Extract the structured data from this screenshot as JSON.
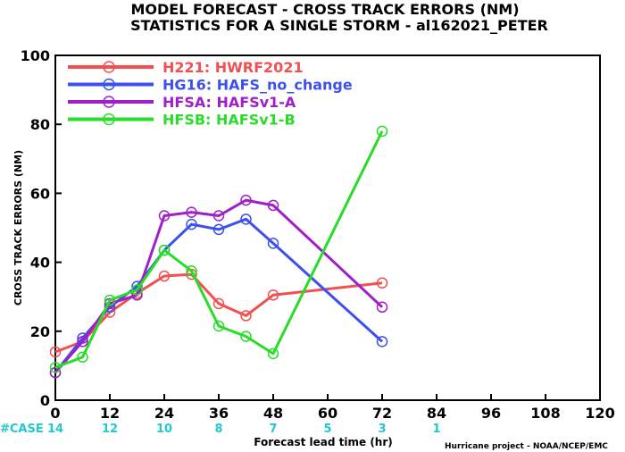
{
  "chart_data": {
    "type": "line",
    "title": "MODEL FORECAST - CROSS TRACK ERRORS (NM)",
    "subtitle": "STATISTICS FOR A SINGLE STORM - al162021_PETER",
    "xlabel": "Forecast lead time (hr)",
    "ylabel": "CROSS TRACK ERRORS (NM)",
    "xlim": [
      0,
      120
    ],
    "ylim": [
      0,
      100
    ],
    "x_ticks": [
      "0",
      "12",
      "24",
      "36",
      "48",
      "60",
      "72",
      "84",
      "96",
      "108",
      "120"
    ],
    "y_ticks": [
      "0",
      "20",
      "40",
      "60",
      "80",
      "100"
    ],
    "grid": false,
    "legend_position": "top-left",
    "case_label": "#CASE",
    "case_counts": [
      {
        "x": 0,
        "label": "14"
      },
      {
        "x": 12,
        "label": "12"
      },
      {
        "x": 24,
        "label": "10"
      },
      {
        "x": 36,
        "label": "8"
      },
      {
        "x": 48,
        "label": "7"
      },
      {
        "x": 60,
        "label": "5"
      },
      {
        "x": 72,
        "label": "3"
      },
      {
        "x": 84,
        "label": "1"
      }
    ],
    "credit": "Hurricane project - NOAA/NCEP/EMC",
    "series": [
      {
        "name": "H221: HWRF2021",
        "color": "#f25050",
        "x": [
          0,
          6,
          12,
          18,
          24,
          30,
          36,
          42,
          48,
          72
        ],
        "y": [
          14,
          17,
          25.5,
          31,
          36,
          36.5,
          28,
          24.5,
          30.5,
          34
        ]
      },
      {
        "name": "HG16: HAFS_no_change",
        "color": "#3c50f0",
        "x": [
          0,
          6,
          12,
          18,
          24,
          30,
          36,
          42,
          48,
          72
        ],
        "y": [
          8,
          18,
          27,
          33,
          43.5,
          51,
          49.5,
          52.5,
          45.5,
          17
        ]
      },
      {
        "name": "HFSA: HAFSv1-A",
        "color": "#a020c8",
        "x": [
          0,
          6,
          12,
          18,
          24,
          30,
          36,
          42,
          48,
          72
        ],
        "y": [
          8,
          17,
          28,
          30.5,
          53.5,
          54.5,
          53.5,
          58,
          56.5,
          27
        ]
      },
      {
        "name": "HFSB: HAFSv1-B",
        "color": "#28dc28",
        "x": [
          0,
          6,
          12,
          18,
          24,
          30,
          36,
          42,
          48,
          72
        ],
        "y": [
          9.5,
          12.5,
          29,
          32,
          43.5,
          37.5,
          21.5,
          18.5,
          13.5,
          78
        ]
      }
    ]
  }
}
